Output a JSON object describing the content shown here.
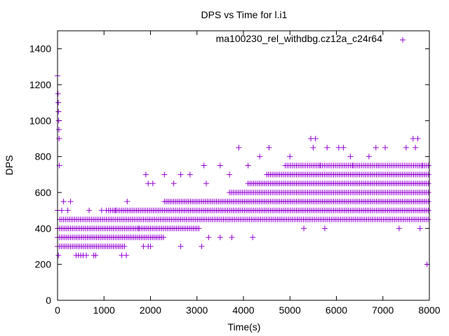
{
  "chart_data": {
    "type": "scatter",
    "title": "DPS vs Time for l.i1",
    "xlabel": "Time(s)",
    "ylabel": "DPS",
    "xlim": [
      0,
      8000
    ],
    "ylim": [
      0,
      1500
    ],
    "xticks": [
      0,
      1000,
      2000,
      3000,
      4000,
      5000,
      6000,
      7000,
      8000
    ],
    "yticks": [
      0,
      200,
      400,
      600,
      800,
      1000,
      1200,
      1400
    ],
    "grid": false,
    "legend_position": "top-right",
    "marker": "+",
    "series": [
      {
        "name": "ma100230_rel_withdbg.cz12a_c24r64",
        "color": "#9400d3",
        "bands": [
          {
            "y": 300,
            "x_from": 0,
            "x_to": 1450
          },
          {
            "y": 350,
            "x_from": 0,
            "x_to": 2300
          },
          {
            "y": 400,
            "x_from": 0,
            "x_to": 3050
          },
          {
            "y": 450,
            "x_from": 50,
            "x_to": 8000
          },
          {
            "y": 500,
            "x_from": 1100,
            "x_to": 8000
          },
          {
            "y": 550,
            "x_from": 2300,
            "x_to": 8000
          },
          {
            "y": 600,
            "x_from": 3700,
            "x_to": 8000
          },
          {
            "y": 650,
            "x_from": 4100,
            "x_to": 8000
          },
          {
            "y": 700,
            "x_from": 4500,
            "x_to": 8000
          },
          {
            "y": 750,
            "x_from": 4900,
            "x_to": 8000
          }
        ],
        "points": [
          [
            0,
            1250
          ],
          [
            10,
            1150
          ],
          [
            15,
            1100
          ],
          [
            20,
            1050
          ],
          [
            25,
            1000
          ],
          [
            30,
            950
          ],
          [
            35,
            900
          ],
          [
            40,
            750
          ],
          [
            0,
            500
          ],
          [
            20,
            250
          ],
          [
            90,
            500
          ],
          [
            130,
            550
          ],
          [
            220,
            500
          ],
          [
            280,
            550
          ],
          [
            400,
            250
          ],
          [
            450,
            250
          ],
          [
            500,
            250
          ],
          [
            550,
            250
          ],
          [
            620,
            250
          ],
          [
            780,
            250
          ],
          [
            820,
            250
          ],
          [
            680,
            500
          ],
          [
            950,
            500
          ],
          [
            1050,
            500
          ],
          [
            1250,
            500
          ],
          [
            1380,
            250
          ],
          [
            1480,
            250
          ],
          [
            1500,
            550
          ],
          [
            1750,
            400
          ],
          [
            1850,
            300
          ],
          [
            1950,
            650
          ],
          [
            1900,
            700
          ],
          [
            2050,
            650
          ],
          [
            1950,
            300
          ],
          [
            2000,
            300
          ],
          [
            2300,
            700
          ],
          [
            2500,
            650
          ],
          [
            2650,
            300
          ],
          [
            2650,
            700
          ],
          [
            2850,
            700
          ],
          [
            3100,
            300
          ],
          [
            3150,
            750
          ],
          [
            3200,
            650
          ],
          [
            3250,
            350
          ],
          [
            3500,
            750
          ],
          [
            3500,
            350
          ],
          [
            3700,
            700
          ],
          [
            3750,
            350
          ],
          [
            3900,
            850
          ],
          [
            4100,
            750
          ],
          [
            4200,
            350
          ],
          [
            4350,
            800
          ],
          [
            4550,
            850
          ],
          [
            5000,
            800
          ],
          [
            5300,
            400
          ],
          [
            5450,
            900
          ],
          [
            5550,
            900
          ],
          [
            5500,
            850
          ],
          [
            5650,
            750
          ],
          [
            5750,
            400
          ],
          [
            5800,
            850
          ],
          [
            6050,
            850
          ],
          [
            6150,
            850
          ],
          [
            6300,
            800
          ],
          [
            6350,
            750
          ],
          [
            6700,
            800
          ],
          [
            6850,
            850
          ],
          [
            6900,
            750
          ],
          [
            7050,
            850
          ],
          [
            7350,
            400
          ],
          [
            7500,
            850
          ],
          [
            7650,
            900
          ],
          [
            7700,
            850
          ],
          [
            7750,
            900
          ],
          [
            7800,
            400
          ],
          [
            7850,
            750
          ],
          [
            7950,
            200
          ]
        ]
      }
    ]
  }
}
